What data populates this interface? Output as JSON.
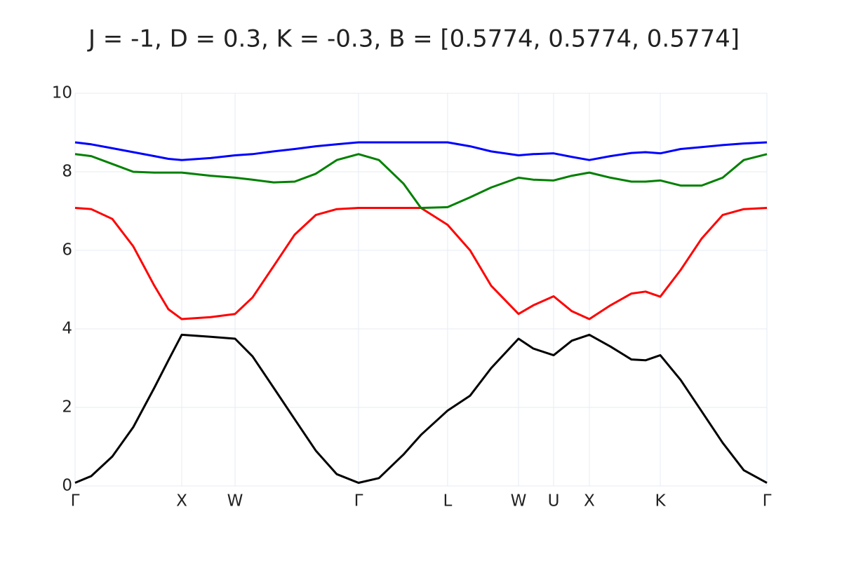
{
  "chart_data": {
    "type": "line",
    "title": "J = -1, D = 0.3, K = -0.3, B = [0.5774, 0.5774, 0.5774]",
    "x": [
      0,
      0.151,
      0.349,
      0.546,
      0.743,
      0.875,
      1.0,
      1.27,
      1.5,
      1.664,
      1.862,
      2.059,
      2.257,
      2.454,
      2.658,
      2.849,
      3.079,
      3.243,
      3.493,
      3.704,
      3.901,
      4.158,
      4.296,
      4.487,
      4.658,
      4.822,
      5.02,
      5.217,
      5.349,
      5.487,
      5.678,
      5.875,
      6.072,
      6.27,
      6.487
    ],
    "series": [
      {
        "color": "#000000",
        "values": [
          0.08,
          0.25,
          0.75,
          1.5,
          2.5,
          3.2,
          3.85,
          3.8,
          3.75,
          3.3,
          2.5,
          1.7,
          0.9,
          0.3,
          0.08,
          0.2,
          0.8,
          1.3,
          1.92,
          2.3,
          3.0,
          3.75,
          3.5,
          3.33,
          3.7,
          3.85,
          3.55,
          3.22,
          3.2,
          3.33,
          2.7,
          1.9,
          1.1,
          0.4,
          0.08
        ]
      },
      {
        "color": "#ff0000",
        "values": [
          7.08,
          7.05,
          6.8,
          6.1,
          5.1,
          4.5,
          4.25,
          4.3,
          4.38,
          4.8,
          5.6,
          6.4,
          6.9,
          7.05,
          7.08,
          7.08,
          7.08,
          7.08,
          6.65,
          6.0,
          5.1,
          4.38,
          4.6,
          4.83,
          4.45,
          4.25,
          4.6,
          4.9,
          4.95,
          4.82,
          5.5,
          6.3,
          6.9,
          7.05,
          7.08
        ]
      },
      {
        "color": "#008000",
        "values": [
          8.45,
          8.4,
          8.2,
          8.0,
          7.98,
          7.98,
          7.98,
          7.9,
          7.85,
          7.8,
          7.73,
          7.75,
          7.95,
          8.3,
          8.45,
          8.3,
          7.7,
          7.08,
          7.1,
          7.35,
          7.6,
          7.85,
          7.8,
          7.78,
          7.9,
          7.98,
          7.85,
          7.75,
          7.75,
          7.78,
          7.65,
          7.65,
          7.85,
          8.3,
          8.45
        ]
      },
      {
        "color": "#0000ff",
        "values": [
          8.75,
          8.7,
          8.6,
          8.5,
          8.4,
          8.33,
          8.3,
          8.35,
          8.42,
          8.45,
          8.52,
          8.58,
          8.65,
          8.7,
          8.75,
          8.75,
          8.75,
          8.75,
          8.75,
          8.65,
          8.52,
          8.42,
          8.45,
          8.47,
          8.38,
          8.3,
          8.4,
          8.48,
          8.5,
          8.47,
          8.58,
          8.63,
          8.68,
          8.72,
          8.75
        ]
      }
    ],
    "xlim": [
      0,
      6.487
    ],
    "xticks": [
      {
        "value": 0,
        "label": "Γ"
      },
      {
        "value": 1.0,
        "label": "X"
      },
      {
        "value": 1.5,
        "label": "W"
      },
      {
        "value": 2.658,
        "label": "Γ"
      },
      {
        "value": 3.493,
        "label": "L"
      },
      {
        "value": 4.158,
        "label": "W"
      },
      {
        "value": 4.487,
        "label": "U"
      },
      {
        "value": 4.822,
        "label": "X"
      },
      {
        "value": 5.487,
        "label": "K"
      },
      {
        "value": 6.487,
        "label": "Γ"
      }
    ],
    "ylim": [
      0,
      10
    ],
    "yticks": [
      0,
      2,
      4,
      6,
      8,
      10
    ],
    "grid": true
  }
}
